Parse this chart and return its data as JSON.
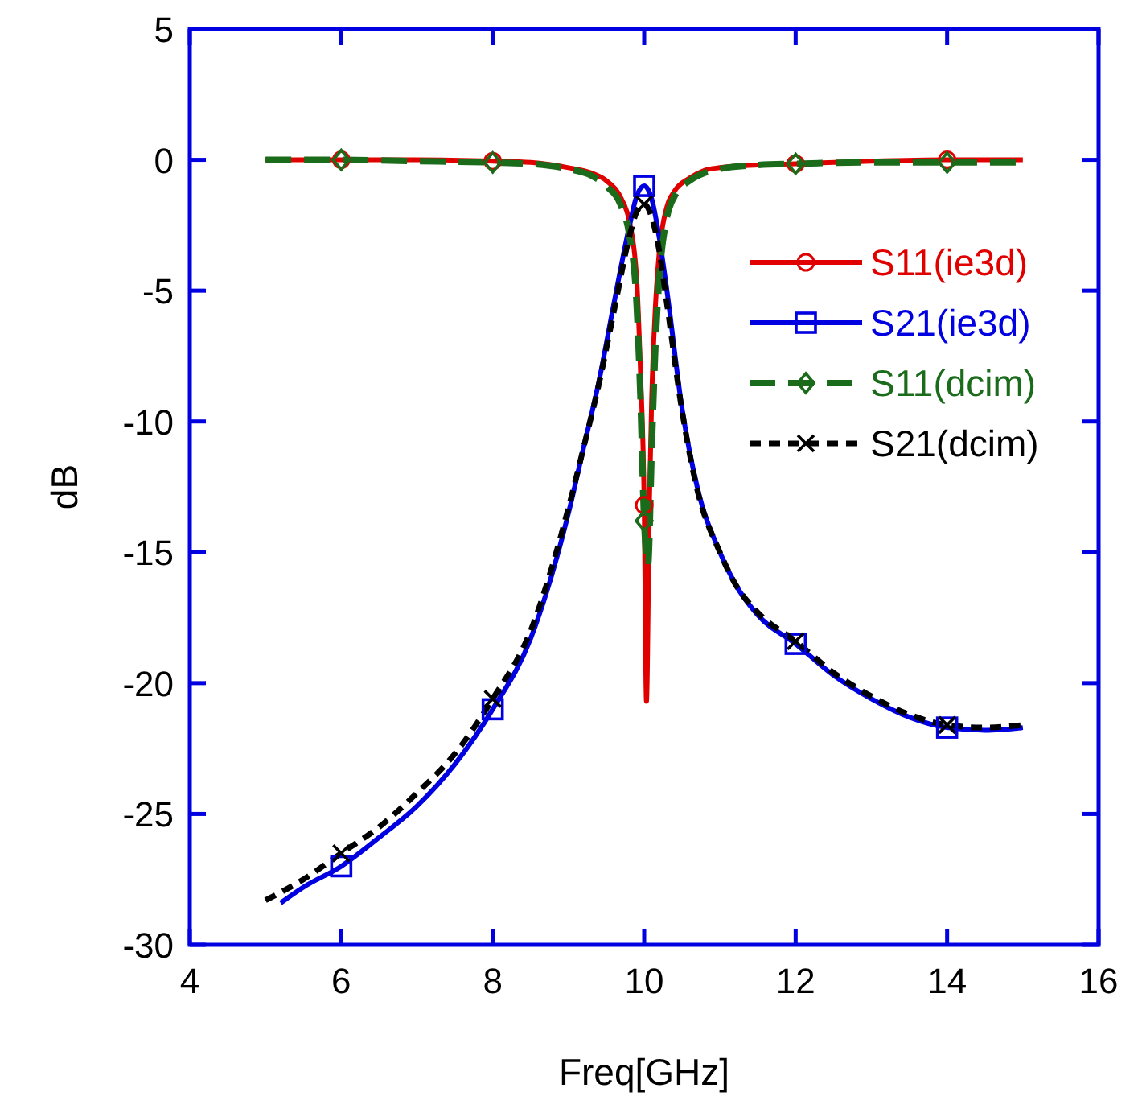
{
  "chart_data": {
    "type": "line",
    "xlabel": "Freq[GHz]",
    "ylabel": "dB",
    "xlim": [
      4,
      16
    ],
    "ylim": [
      -30,
      5
    ],
    "xticks": [
      4,
      6,
      8,
      10,
      12,
      14,
      16
    ],
    "yticks": [
      -30,
      -25,
      -20,
      -15,
      -10,
      -5,
      0,
      5
    ],
    "grid": false,
    "legend": "right",
    "series": [
      {
        "name": "S11(ie3d)",
        "color": "#e00000",
        "line_style": "solid",
        "x": [
          5,
          6,
          7,
          8,
          8.5,
          9,
          9.3,
          9.5,
          9.7,
          9.8,
          9.9,
          9.95,
          10,
          10.03,
          10.07,
          10.1,
          10.15,
          10.2,
          10.3,
          10.4,
          10.6,
          10.8,
          11,
          11.5,
          12,
          13,
          14,
          15
        ],
        "values": [
          0,
          0,
          0,
          -0.05,
          -0.1,
          -0.3,
          -0.5,
          -0.8,
          -1.5,
          -2.3,
          -4.5,
          -8,
          -13.2,
          -20.7,
          -13,
          -9,
          -5.5,
          -3.5,
          -1.8,
          -1.2,
          -0.7,
          -0.4,
          -0.3,
          -0.2,
          -0.15,
          -0.05,
          0,
          0
        ]
      },
      {
        "name": "S21(ie3d)",
        "color": "#0000e0",
        "line_style": "solid",
        "x": [
          5.2,
          5.5,
          6,
          6.5,
          7,
          7.5,
          8,
          8.5,
          9,
          9.2,
          9.4,
          9.6,
          9.8,
          9.9,
          10,
          10.1,
          10.2,
          10.3,
          10.5,
          10.7,
          11,
          11.2,
          11.5,
          12,
          12.5,
          13,
          13.5,
          14,
          14.5,
          15
        ],
        "values": [
          -28.4,
          -27.8,
          -27,
          -25.9,
          -24.7,
          -23.1,
          -21,
          -18.3,
          -13.5,
          -11,
          -8.5,
          -5.5,
          -2.6,
          -1.4,
          -1,
          -1.5,
          -3,
          -5,
          -9.5,
          -12.5,
          -15,
          -16.2,
          -17.4,
          -18.5,
          -19.7,
          -20.6,
          -21.3,
          -21.7,
          -21.8,
          -21.7
        ]
      },
      {
        "name": "S11(dcim)",
        "color": "#1a6b1a",
        "line_style": "dashed",
        "x": [
          5,
          6,
          7,
          8,
          8.5,
          9,
          9.3,
          9.5,
          9.7,
          9.8,
          9.9,
          9.95,
          10,
          10.05,
          10.1,
          10.15,
          10.2,
          10.3,
          10.4,
          10.6,
          10.8,
          11,
          11.5,
          12,
          13,
          14,
          15
        ],
        "values": [
          0,
          0,
          -0.05,
          -0.1,
          -0.15,
          -0.35,
          -0.6,
          -1,
          -1.8,
          -2.8,
          -5.5,
          -9,
          -13.8,
          -15.5,
          -11,
          -7,
          -4.5,
          -2.2,
          -1.4,
          -0.8,
          -0.5,
          -0.35,
          -0.2,
          -0.15,
          -0.1,
          -0.1,
          -0.1
        ]
      },
      {
        "name": "S21(dcim)",
        "color": "#000000",
        "line_style": "dotted",
        "x": [
          5,
          5.5,
          6,
          6.5,
          7,
          7.5,
          8,
          8.5,
          9,
          9.2,
          9.4,
          9.6,
          9.8,
          9.9,
          10,
          10.1,
          10.2,
          10.3,
          10.5,
          10.7,
          11,
          11.2,
          11.5,
          12,
          12.5,
          13,
          13.5,
          14,
          14.5,
          15
        ],
        "values": [
          -28.3,
          -27.5,
          -26.5,
          -25.5,
          -24.2,
          -22.7,
          -20.6,
          -18,
          -13.3,
          -11,
          -8.6,
          -5.8,
          -3,
          -2,
          -1.7,
          -2.2,
          -3.5,
          -5.5,
          -9.6,
          -12.6,
          -15,
          -16.2,
          -17.3,
          -18.4,
          -19.6,
          -20.5,
          -21.2,
          -21.6,
          -21.7,
          -21.6
        ]
      },
      {
        "type": "scatter",
        "color": "#e00000",
        "marker": "circle",
        "x": [
          6,
          8,
          10,
          12,
          14
        ],
        "values": [
          0,
          -0.05,
          -13.2,
          -0.15,
          0
        ]
      },
      {
        "type": "scatter",
        "color": "#0000e0",
        "marker": "square",
        "x": [
          6,
          8,
          10,
          12,
          14
        ],
        "values": [
          -27,
          -21,
          -1,
          -18.5,
          -21.7
        ]
      },
      {
        "type": "scatter",
        "color": "#1a6b1a",
        "marker": "diamond",
        "x": [
          6,
          8,
          10,
          12,
          14
        ],
        "values": [
          0,
          -0.1,
          -13.8,
          -0.15,
          -0.1
        ]
      },
      {
        "type": "scatter",
        "color": "#000000",
        "marker": "cross",
        "x": [
          6,
          8,
          10,
          12,
          14
        ],
        "values": [
          -26.5,
          -20.6,
          -1.7,
          -18.4,
          -21.6
        ]
      }
    ]
  }
}
